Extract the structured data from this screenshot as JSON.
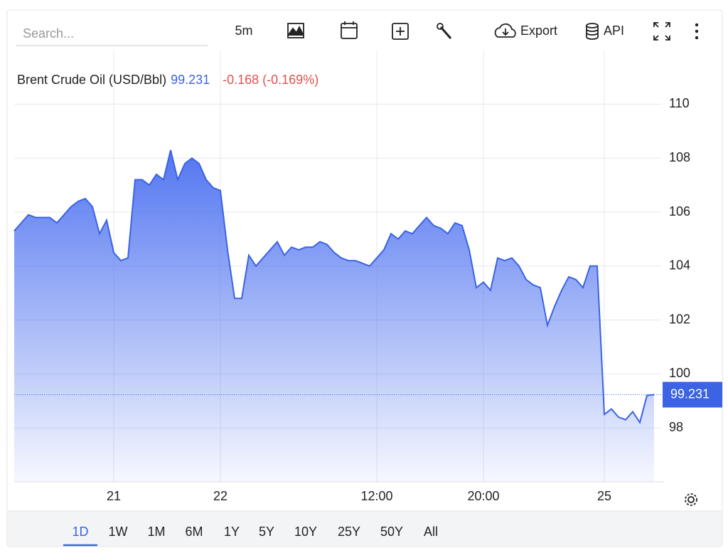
{
  "toolbar": {
    "search_placeholder": "Search...",
    "interval": "5m",
    "export": "Export",
    "api": "API"
  },
  "chart_data": {
    "type": "area",
    "title": "Brent Crude Oil (USD/Bbl)",
    "price": "99.231",
    "change": "-0.168 (-0.169%)",
    "categories": [
      null,
      null,
      null,
      null,
      null,
      null,
      null,
      null,
      null,
      null,
      null,
      null,
      null,
      null,
      "21",
      null,
      null,
      null,
      null,
      null,
      null,
      null,
      null,
      null,
      null,
      null,
      null,
      null,
      null,
      "22",
      null,
      null,
      null,
      null,
      null,
      null,
      null,
      null,
      null,
      null,
      null,
      null,
      null,
      null,
      null,
      null,
      null,
      null,
      null,
      null,
      null,
      "12:00",
      null,
      null,
      null,
      null,
      null,
      null,
      null,
      null,
      null,
      null,
      null,
      null,
      null,
      null,
      "20:00",
      null,
      null,
      null,
      null,
      null,
      null,
      null,
      null,
      null,
      null,
      null,
      null,
      null,
      null,
      null,
      null,
      "25",
      null,
      null,
      null,
      null,
      null,
      null,
      null
    ],
    "values": [
      105.3,
      105.6,
      105.9,
      105.8,
      105.8,
      105.8,
      105.6,
      105.9,
      106.2,
      106.4,
      106.5,
      106.2,
      105.2,
      105.7,
      104.5,
      104.2,
      104.3,
      107.2,
      107.2,
      107.0,
      107.4,
      107.2,
      108.3,
      107.2,
      107.8,
      108.0,
      107.8,
      107.2,
      106.9,
      106.8,
      104.6,
      102.8,
      102.8,
      104.4,
      104.0,
      104.3,
      104.6,
      104.9,
      104.4,
      104.7,
      104.6,
      104.7,
      104.7,
      104.9,
      104.8,
      104.5,
      104.3,
      104.2,
      104.2,
      104.1,
      104.0,
      104.3,
      104.6,
      105.2,
      105.0,
      105.3,
      105.2,
      105.5,
      105.8,
      105.5,
      105.4,
      105.2,
      105.6,
      105.5,
      104.6,
      103.2,
      103.4,
      103.1,
      104.3,
      104.2,
      104.3,
      104.0,
      103.5,
      103.3,
      103.2,
      101.8,
      102.5,
      103.1,
      103.6,
      103.5,
      103.2,
      104.0,
      104.0,
      98.5,
      98.7,
      98.4,
      98.3,
      98.6,
      98.2,
      99.2,
      99.231
    ],
    "color": "#3b63e3",
    "ylim": [
      96,
      112
    ],
    "yticks": [
      98,
      100,
      102,
      104,
      106,
      108,
      110
    ],
    "grid": true
  },
  "range_buttons": [
    "1D",
    "1W",
    "1M",
    "6M",
    "1Y",
    "5Y",
    "10Y",
    "25Y",
    "50Y",
    "All"
  ],
  "active_range": "1D"
}
